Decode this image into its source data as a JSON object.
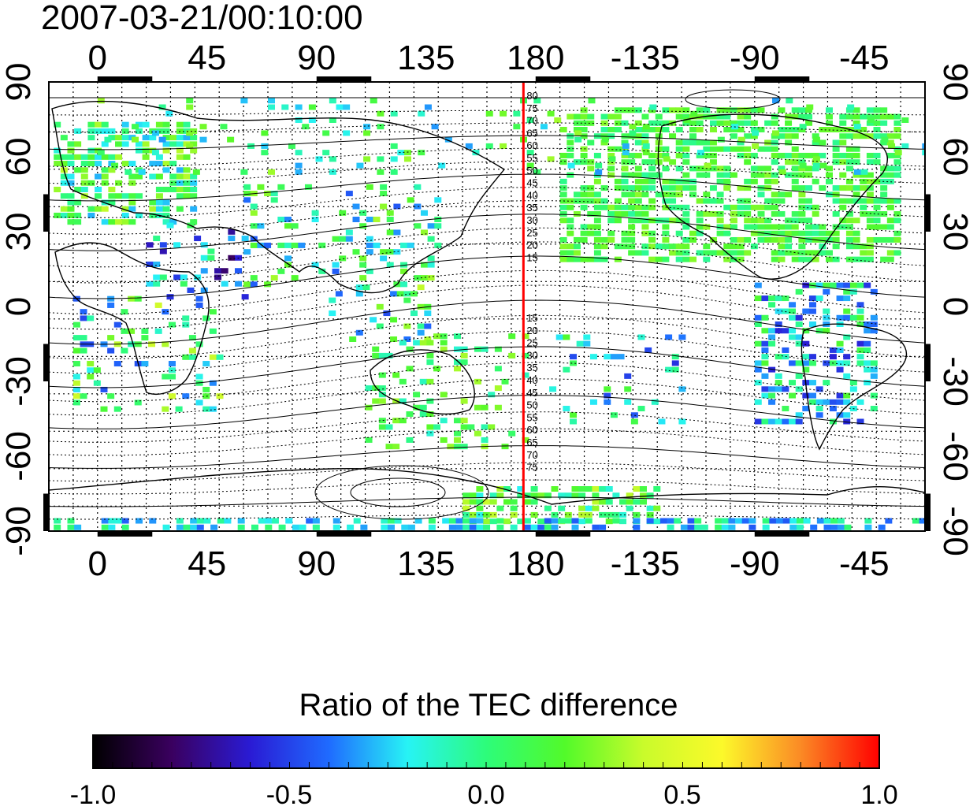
{
  "title": "2007-03-21/00:10:00",
  "map": {
    "lon_ticks": [
      "0",
      "45",
      "90",
      "135",
      "180",
      "-135",
      "-90",
      "-45"
    ],
    "lat_ticks": [
      "90",
      "60",
      "30",
      "0",
      "-30",
      "-60",
      "-90"
    ],
    "meridian_marker_lon": 175,
    "meridian_marker_color": "#ff0000",
    "contour_labels_north": [
      "80",
      "75",
      "70",
      "65",
      "60",
      "55",
      "50",
      "45",
      "40",
      "35",
      "30",
      "25",
      "20",
      "15"
    ],
    "contour_labels_south": [
      "15",
      "20",
      "25",
      "30",
      "35",
      "40",
      "45",
      "50",
      "55",
      "60",
      "65",
      "70",
      "75"
    ]
  },
  "colorbar": {
    "title": "Ratio of the TEC difference",
    "min": -1.0,
    "max": 1.0,
    "labels": [
      "-1.0",
      "-0.5",
      "0.0",
      "0.5",
      "1.0"
    ],
    "colormap": [
      "#000000",
      "#3a005f",
      "#2a1bd4",
      "#1f6bff",
      "#27f3f5",
      "#2dfc7a",
      "#52fa2a",
      "#c9fb2b",
      "#fcf92a",
      "#fb8a25",
      "#ff0000"
    ]
  }
}
